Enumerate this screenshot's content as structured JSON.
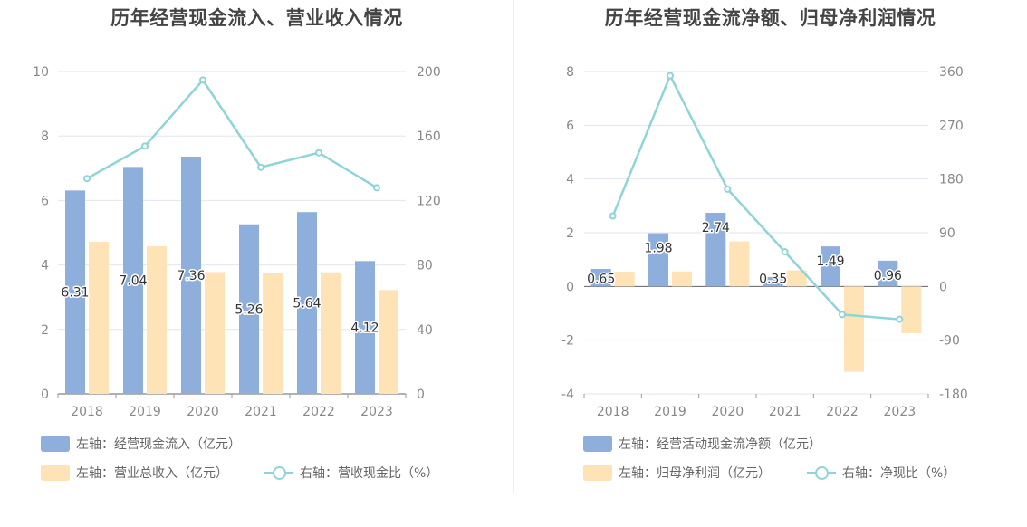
{
  "charts": [
    {
      "title": "历年经营现金流入、营业收入情况",
      "legend": [
        {
          "label": "左轴：经营现金流入（亿元）",
          "kind": "bar",
          "color": "#8eaedc"
        },
        {
          "label": "左轴：营业总收入（亿元）",
          "kind": "bar",
          "color": "#fde3b6"
        },
        {
          "label": "右轴：营收现金比（%）",
          "kind": "line",
          "color": "#8ed4d8"
        }
      ]
    },
    {
      "title": "历年经营现金流净额、归母净利润情况",
      "legend": [
        {
          "label": "左轴：经营活动现金流净额（亿元）",
          "kind": "bar",
          "color": "#8eaedc"
        },
        {
          "label": "左轴：归母净利润（亿元）",
          "kind": "bar",
          "color": "#fde3b6"
        },
        {
          "label": "右轴：净现比（%）",
          "kind": "line",
          "color": "#8ed4d8"
        }
      ]
    }
  ],
  "chart_data": [
    {
      "type": "bar",
      "title": "历年经营现金流入、营业收入情况",
      "categories": [
        "2018",
        "2019",
        "2020",
        "2021",
        "2022",
        "2023"
      ],
      "ylim_left": [
        0,
        10
      ],
      "ylim_right": [
        0,
        200
      ],
      "yticks_left": [
        "0",
        "2",
        "4",
        "6",
        "8",
        "10"
      ],
      "yticks_right": [
        "0",
        "40",
        "80",
        "120",
        "160",
        "200"
      ],
      "grid": true,
      "legend_position": "bottom-left",
      "series": [
        {
          "name": "左轴：经营现金流入（亿元）",
          "axis": "left",
          "type": "bar",
          "color": "#8eaedc",
          "values": [
            6.31,
            7.04,
            7.36,
            5.26,
            5.64,
            4.12
          ],
          "labels": [
            "6.31",
            "7.04",
            "7.36",
            "5.26",
            "5.64",
            "4.12"
          ]
        },
        {
          "name": "左轴：营业总收入（亿元）",
          "axis": "left",
          "type": "bar",
          "color": "#fde3b6",
          "values": [
            4.72,
            4.58,
            3.78,
            3.74,
            3.77,
            3.22
          ]
        },
        {
          "name": "右轴：营收现金比（%）",
          "axis": "right",
          "type": "line",
          "color": "#8ed4d8",
          "values": [
            133.6,
            153.7,
            194.7,
            140.6,
            149.6,
            127.9
          ]
        }
      ]
    },
    {
      "type": "bar",
      "title": "历年经营现金流净额、归母净利润情况",
      "categories": [
        "2018",
        "2019",
        "2020",
        "2021",
        "2022",
        "2023"
      ],
      "ylim_left": [
        -4,
        8
      ],
      "ylim_right": [
        -180,
        360
      ],
      "yticks_left": [
        "-4",
        "-2",
        "0",
        "2",
        "4",
        "6",
        "8"
      ],
      "yticks_right": [
        "-180",
        "-90",
        "0",
        "90",
        "180",
        "270",
        "360"
      ],
      "grid": true,
      "legend_position": "bottom-left",
      "series": [
        {
          "name": "左轴：经营活动现金流净额（亿元）",
          "axis": "left",
          "type": "bar",
          "color": "#8eaedc",
          "values": [
            0.65,
            1.98,
            2.74,
            0.35,
            1.49,
            0.96
          ],
          "labels": [
            "0.65",
            "1.98",
            "2.74",
            "0.35",
            "1.49",
            "0.96"
          ]
        },
        {
          "name": "左轴：归母净利润（亿元）",
          "axis": "left",
          "type": "bar",
          "color": "#fde3b6",
          "values": [
            0.55,
            0.56,
            1.68,
            0.6,
            -3.18,
            -1.74
          ]
        },
        {
          "name": "右轴：净现比（%）",
          "axis": "right",
          "type": "line",
          "color": "#8ed4d8",
          "values": [
            118,
            353,
            163,
            58,
            -47,
            -55
          ]
        }
      ]
    }
  ]
}
